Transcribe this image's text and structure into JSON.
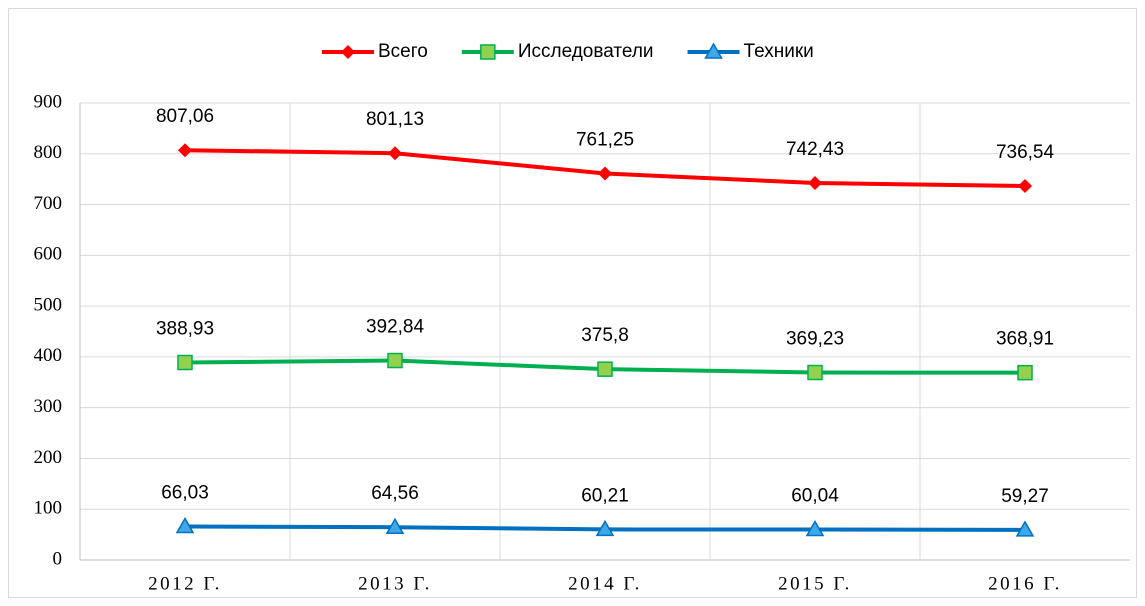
{
  "chart_data": {
    "type": "line",
    "categories": [
      "2012 Г.",
      "2013 Г.",
      "2014 Г.",
      "2015 Г.",
      "2016 Г."
    ],
    "series": [
      {
        "name": "Всего",
        "color": "#ff0000",
        "marker": "diamond",
        "values": [
          807.06,
          801.13,
          761.25,
          742.43,
          736.54
        ],
        "value_labels": [
          "807,06",
          "801,13",
          "761,25",
          "742,43",
          "736,54"
        ]
      },
      {
        "name": "Исследователи",
        "color": "#00b050",
        "marker": "square",
        "values": [
          388.93,
          392.84,
          375.8,
          369.23,
          368.91
        ],
        "value_labels": [
          "388,93",
          "392,84",
          "375,8",
          "369,23",
          "368,91"
        ]
      },
      {
        "name": "Техники",
        "color": "#0070c0",
        "marker": "triangle",
        "values": [
          66.03,
          64.56,
          60.21,
          60.04,
          59.27
        ],
        "value_labels": [
          "66,03",
          "64,56",
          "60,21",
          "60,04",
          "59,27"
        ]
      }
    ],
    "ylim": [
      0,
      900
    ],
    "yticks": [
      0,
      100,
      200,
      300,
      400,
      500,
      600,
      700,
      800,
      900
    ],
    "grid": true,
    "legend": "top"
  }
}
